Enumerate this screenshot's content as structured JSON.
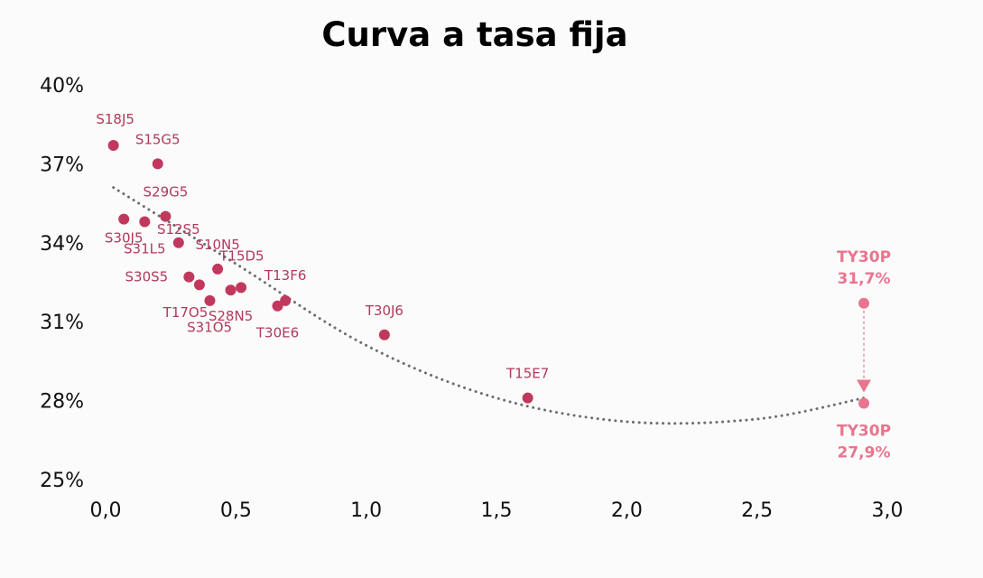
{
  "chart_data": {
    "type": "scatter",
    "title": "Curva a tasa fija",
    "xlabel": "",
    "ylabel": "",
    "xlim": [
      0,
      3
    ],
    "ylim": [
      25,
      40
    ],
    "x_ticks": [
      0,
      0.5,
      1,
      1.5,
      2,
      2.5,
      3
    ],
    "x_tick_labels": [
      "0,0",
      "0,5",
      "1,0",
      "1,5",
      "2,0",
      "2,5",
      "3,0"
    ],
    "y_ticks": [
      25,
      28,
      31,
      34,
      37,
      40
    ],
    "y_tick_labels": [
      "25%",
      "28%",
      "31%",
      "34%",
      "37%",
      "40%"
    ],
    "grid": false,
    "legend": "none",
    "colors": {
      "points": "#c0395d",
      "labels": "#b03a5b",
      "highlight": "#e8758f",
      "trend": "#6e6e6e",
      "background": "#fcfbfb"
    },
    "series": [
      {
        "points": [
          {
            "label": "S18J5",
            "x": 0.03,
            "y": 37.7
          },
          {
            "label": "S15G5",
            "x": 0.2,
            "y": 37.0
          },
          {
            "label": "S29G5",
            "x": 0.23,
            "y": 35.0
          },
          {
            "label": "S30J5",
            "x": 0.07,
            "y": 34.9
          },
          {
            "label": "S31L5",
            "x": 0.15,
            "y": 34.8
          },
          {
            "label": "S12S5",
            "x": 0.28,
            "y": 34.0
          },
          {
            "label": "S10N5",
            "x": 0.43,
            "y": 33.0
          },
          {
            "label": "S30S5",
            "x": 0.32,
            "y": 32.7
          },
          {
            "label": "T15D5",
            "x": 0.36,
            "y": 32.4
          },
          {
            "label": "T17O5",
            "x": 0.4,
            "y": 31.8
          },
          {
            "label": "S28N5",
            "x": 0.48,
            "y": 32.2
          },
          {
            "label": "S31O5",
            "x": 0.52,
            "y": 32.3
          },
          {
            "label": "T13F6",
            "x": 0.69,
            "y": 31.8
          },
          {
            "label": "T30E6",
            "x": 0.66,
            "y": 31.6
          },
          {
            "label": "T30J6",
            "x": 1.07,
            "y": 30.5
          },
          {
            "label": "T15E7",
            "x": 1.62,
            "y": 28.1
          }
        ]
      }
    ],
    "trendline": {
      "style": "dotted",
      "points": [
        [
          0.03,
          36.1
        ],
        [
          0.5,
          33.2
        ],
        [
          1.0,
          30.1
        ],
        [
          1.5,
          28.1
        ],
        [
          2.0,
          27.2
        ],
        [
          2.5,
          27.3
        ],
        [
          2.91,
          28.1
        ]
      ]
    },
    "highlight": {
      "label": "TY30P",
      "x": 2.91,
      "from": {
        "y": 31.7,
        "text": "31,7%"
      },
      "to": {
        "y": 27.9,
        "text": "27,9%"
      }
    }
  }
}
